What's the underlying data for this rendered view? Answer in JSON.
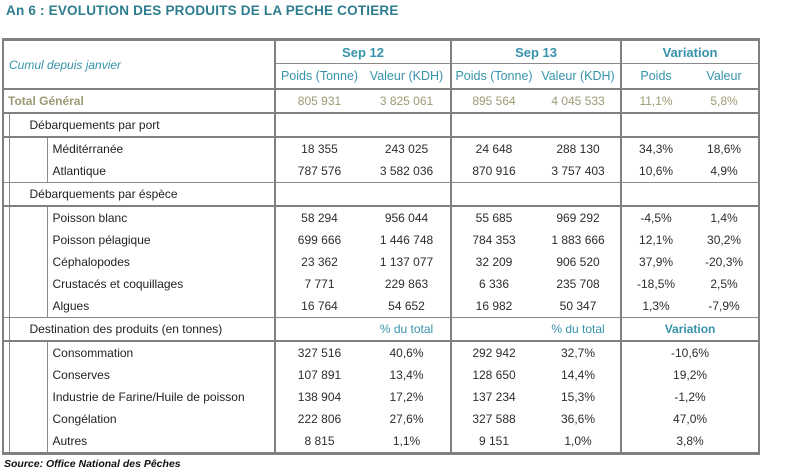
{
  "title": "An 6 : EVOLUTION DES PRODUITS DE LA PECHE COTIERE",
  "source_note": "Source: Office National des Pêches",
  "colors": {
    "title_teal": "#2e7d8e",
    "header_teal": "#3693ab",
    "total_row_olive": "#9c9a74",
    "border_gray": "#7f7f7f"
  },
  "table": {
    "corner_label": "Cumul depuis janvier",
    "col_groups": [
      {
        "label": "Sep 12",
        "sub": [
          "Poids (Tonne)",
          "Valeur (KDH)"
        ]
      },
      {
        "label": "Sep 13",
        "sub": [
          "Poids (Tonne)",
          "Valeur (KDH)"
        ]
      },
      {
        "label": "Variation",
        "sub": [
          "Poids",
          "Valeur"
        ]
      }
    ],
    "rows": [
      {
        "type": "total",
        "label": "Total Général",
        "values": [
          "805 931",
          "3 825 061",
          "895 564",
          "4 045 533",
          "11,1%",
          "5,8%"
        ]
      },
      {
        "type": "section",
        "label": "Débarquements par port"
      },
      {
        "type": "item",
        "label": "Méditérranée",
        "values": [
          "18 355",
          "243 025",
          "24 648",
          "288 130",
          "34,3%",
          "18,6%"
        ]
      },
      {
        "type": "item",
        "label": "Atlantique",
        "values": [
          "787 576",
          "3 582 036",
          "870 916",
          "3 757 403",
          "10,6%",
          "4,9%"
        ]
      },
      {
        "type": "section",
        "label": "Débarquements par éspèce"
      },
      {
        "type": "item",
        "label": "Poisson blanc",
        "values": [
          "58 294",
          "956 044",
          "55 685",
          "969 292",
          "-4,5%",
          "1,4%"
        ]
      },
      {
        "type": "item",
        "label": "Poisson pélagique",
        "values": [
          "699 666",
          "1 446 748",
          "784 353",
          "1 883 666",
          "12,1%",
          "30,2%"
        ]
      },
      {
        "type": "item",
        "label": "Céphalopodes",
        "values": [
          "23 362",
          "1 137 077",
          "32 209",
          "906 520",
          "37,9%",
          "-20,3%"
        ]
      },
      {
        "type": "item",
        "label": "Crustacés et coquillages",
        "values": [
          "7 771",
          "229 863",
          "6 336",
          "235 708",
          "-18,5%",
          "2,5%"
        ]
      },
      {
        "type": "item",
        "label": "Algues",
        "values": [
          "16 764",
          "54 652",
          "16 982",
          "50 347",
          "1,3%",
          "-7,9%"
        ]
      },
      {
        "type": "dest_header",
        "label": "Destination des produits (en tonnes)",
        "pct_label": "% du total",
        "var_label": "Variation"
      },
      {
        "type": "dest_item",
        "label": "Consommation",
        "values": [
          "327 516",
          "40,6%",
          "292 942",
          "32,7%",
          "-10,6%"
        ]
      },
      {
        "type": "dest_item",
        "label": "Conserves",
        "values": [
          "107 891",
          "13,4%",
          "128 650",
          "14,4%",
          "19,2%"
        ]
      },
      {
        "type": "dest_item",
        "label": "Industrie de Farine/Huile de poisson",
        "values": [
          "138 904",
          "17,2%",
          "137 234",
          "15,3%",
          "-1,2%"
        ]
      },
      {
        "type": "dest_item",
        "label": "Congélation",
        "values": [
          "222 806",
          "27,6%",
          "327 588",
          "36,6%",
          "47,0%"
        ]
      },
      {
        "type": "dest_item",
        "label": "Autres",
        "values": [
          "8 815",
          "1,1%",
          "9 151",
          "1,0%",
          "3,8%"
        ]
      }
    ]
  }
}
